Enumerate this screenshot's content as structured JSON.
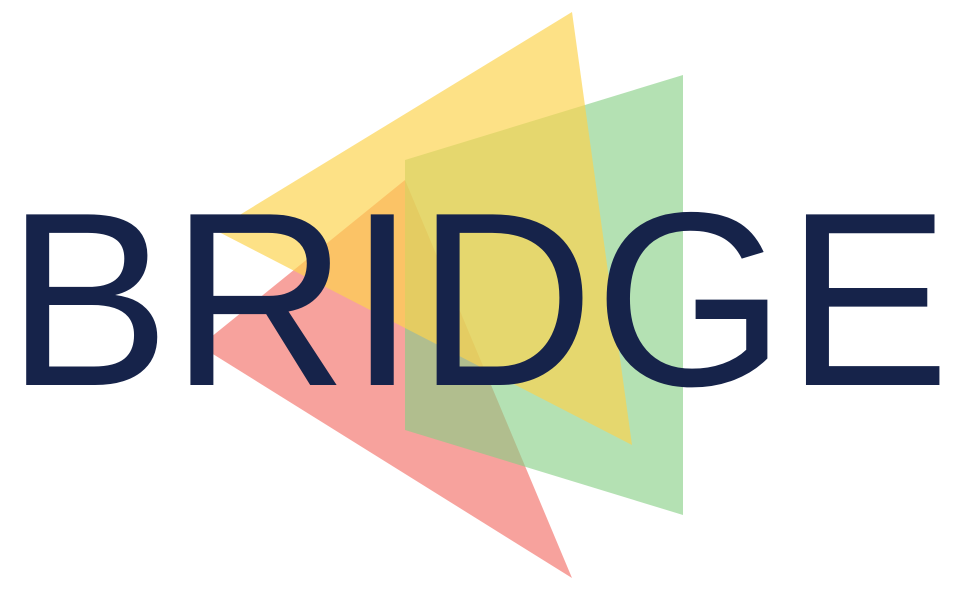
{
  "logo": {
    "wordmark": "BRIDGE",
    "colors": {
      "text": "#16234a",
      "yellow": "#fcd34d",
      "green": "#86cf85",
      "red": "#f47a73",
      "background": "#ffffff"
    }
  }
}
